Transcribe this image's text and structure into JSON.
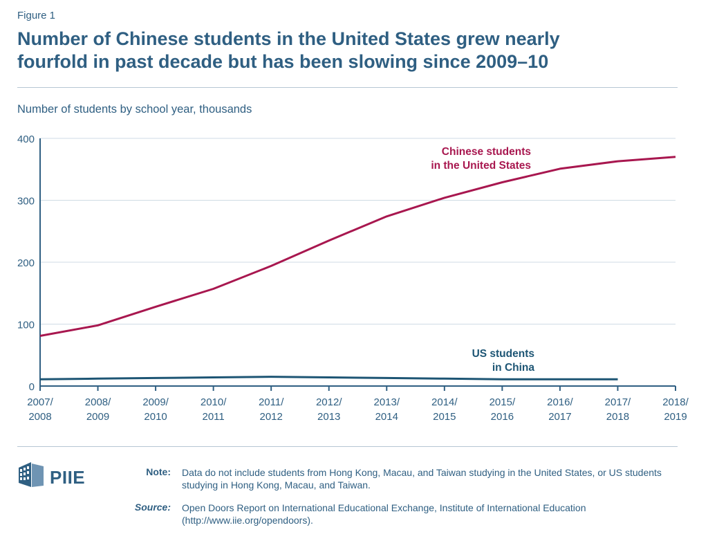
{
  "figure_label": "Figure 1",
  "title_lines": [
    "Number of Chinese students in the United States grew nearly",
    "fourfold in past decade but has been slowing since 2009–10"
  ],
  "subtitle": "Number of students by school year, thousands",
  "chart_data": {
    "type": "line",
    "ylim": [
      0,
      400
    ],
    "yticks": [
      0,
      100,
      200,
      300,
      400
    ],
    "ytick_labels": [
      "0",
      "100",
      "200",
      "300",
      "400"
    ],
    "grid": true,
    "categories": [
      "2007/2008",
      "2008/2009",
      "2009/2010",
      "2010/2011",
      "2011/2012",
      "2012/2013",
      "2013/2014",
      "2014/2015",
      "2015/2016",
      "2016/2017",
      "2017/2018",
      "2018/2019"
    ],
    "category_labels": [
      [
        "2007/",
        "2008"
      ],
      [
        "2008/",
        "2009"
      ],
      [
        "2009/",
        "2010"
      ],
      [
        "2010/",
        "2011"
      ],
      [
        "2011/",
        "2012"
      ],
      [
        "2012/",
        "2013"
      ],
      [
        "2013/",
        "2014"
      ],
      [
        "2014/",
        "2015"
      ],
      [
        "2015/",
        "2016"
      ],
      [
        "2016/",
        "2017"
      ],
      [
        "2017/",
        "2018"
      ],
      [
        "2018/",
        "2019"
      ]
    ],
    "series": [
      {
        "name": "Chinese students in the United States",
        "label_lines": [
          "Chinese students",
          "in the United States"
        ],
        "color": "#a8174f",
        "values": [
          81,
          98,
          128,
          157,
          194,
          235,
          274,
          304,
          329,
          351,
          363,
          370
        ]
      },
      {
        "name": "US students in China",
        "label_lines": [
          "US students",
          "in China"
        ],
        "color": "#1d5574",
        "values": [
          11,
          12,
          13,
          14,
          15,
          14,
          13,
          12,
          11,
          11,
          11,
          null
        ]
      }
    ]
  },
  "footer": {
    "logo_text": "PIIE",
    "note_label": "Note:",
    "note_text": "Data do not include students from Hong Kong, Macau, and Taiwan studying in the United States, or US students studying in Hong Kong, Macau, and Taiwan.",
    "source_label": "Source:",
    "source_text": "Open Doors Report on International Educational Exchange, Institute of International Education (http://www.iie.org/opendoors)."
  }
}
